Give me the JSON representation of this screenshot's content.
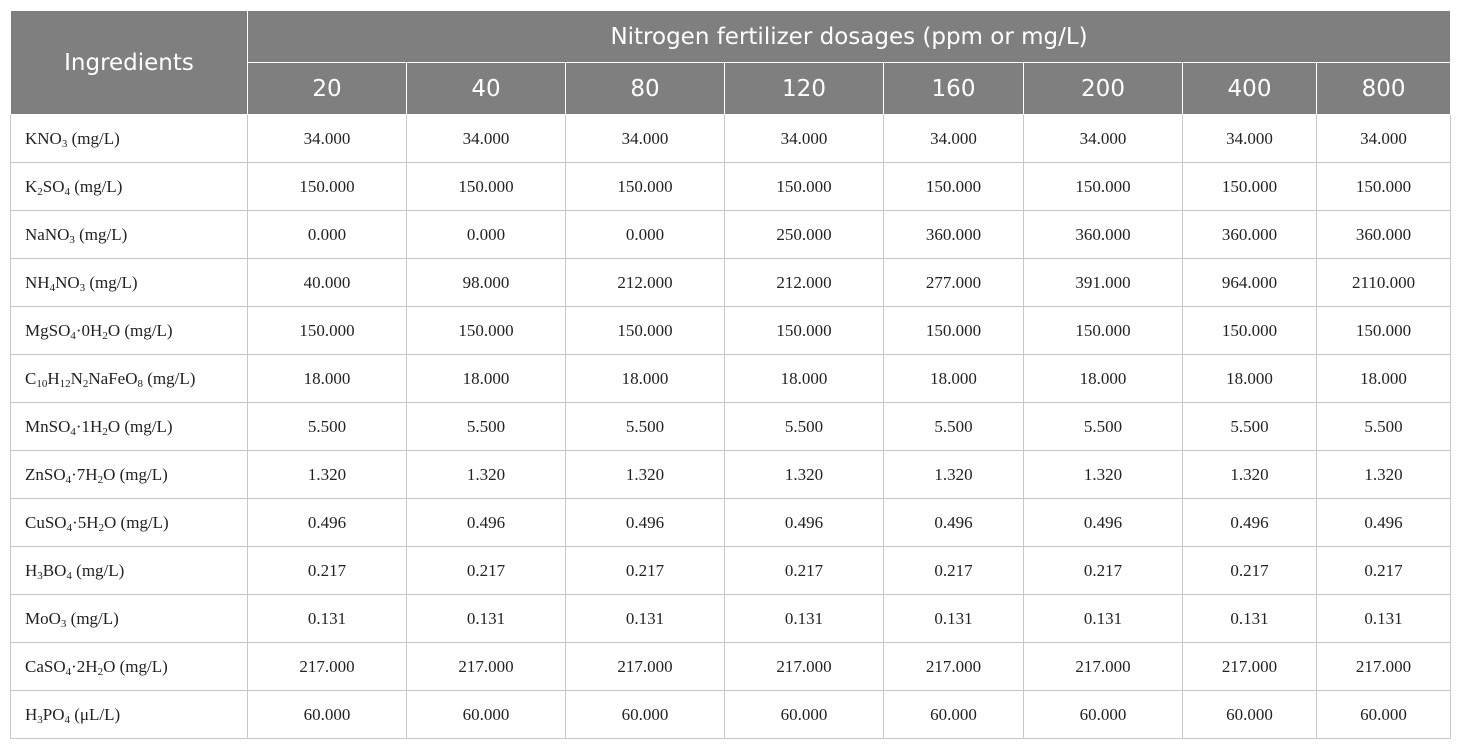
{
  "table": {
    "header_ingredients": "Ingredients",
    "header_group": "Nitrogen fertilizer dosages (ppm or mg/L)",
    "dosages": [
      "20",
      "40",
      "80",
      "120",
      "160",
      "200",
      "400",
      "800"
    ],
    "rows": [
      {
        "ingredient": [
          [
            "KNO"
          ],
          [
            "3",
            "sub"
          ],
          [
            " (mg/L)"
          ]
        ],
        "values": [
          "34.000",
          "34.000",
          "34.000",
          "34.000",
          "34.000",
          "34.000",
          "34.000",
          "34.000"
        ]
      },
      {
        "ingredient": [
          [
            "K"
          ],
          [
            "2",
            "sub"
          ],
          [
            "SO"
          ],
          [
            "4",
            "sub"
          ],
          [
            " (mg/L)"
          ]
        ],
        "values": [
          "150.000",
          "150.000",
          "150.000",
          "150.000",
          "150.000",
          "150.000",
          "150.000",
          "150.000"
        ]
      },
      {
        "ingredient": [
          [
            "NaNO"
          ],
          [
            "3",
            "sub"
          ],
          [
            " (mg/L)"
          ]
        ],
        "values": [
          "0.000",
          "0.000",
          "0.000",
          "250.000",
          "360.000",
          "360.000",
          "360.000",
          "360.000"
        ]
      },
      {
        "ingredient": [
          [
            "NH"
          ],
          [
            "4",
            "sub"
          ],
          [
            "NO"
          ],
          [
            "3",
            "sub"
          ],
          [
            " (mg/L)"
          ]
        ],
        "values": [
          "40.000",
          "98.000",
          "212.000",
          "212.000",
          "277.000",
          "391.000",
          "964.000",
          "2110.000"
        ]
      },
      {
        "ingredient": [
          [
            "MgSO"
          ],
          [
            "4",
            "sub"
          ],
          [
            "·0H"
          ],
          [
            "2",
            "sub"
          ],
          [
            "O (mg/L)"
          ]
        ],
        "values": [
          "150.000",
          "150.000",
          "150.000",
          "150.000",
          "150.000",
          "150.000",
          "150.000",
          "150.000"
        ]
      },
      {
        "ingredient": [
          [
            "C"
          ],
          [
            "10",
            "sub"
          ],
          [
            "H"
          ],
          [
            "12",
            "sub"
          ],
          [
            "N"
          ],
          [
            "2",
            "sub"
          ],
          [
            "NaFeO"
          ],
          [
            "8",
            "sub"
          ],
          [
            " (mg/L)"
          ]
        ],
        "values": [
          "18.000",
          "18.000",
          "18.000",
          "18.000",
          "18.000",
          "18.000",
          "18.000",
          "18.000"
        ]
      },
      {
        "ingredient": [
          [
            "MnSO"
          ],
          [
            "4",
            "sub"
          ],
          [
            "·1H"
          ],
          [
            "2",
            "sub"
          ],
          [
            "O (mg/L)"
          ]
        ],
        "values": [
          "5.500",
          "5.500",
          "5.500",
          "5.500",
          "5.500",
          "5.500",
          "5.500",
          "5.500"
        ]
      },
      {
        "ingredient": [
          [
            "ZnSO"
          ],
          [
            "4",
            "sub"
          ],
          [
            "·7H"
          ],
          [
            "2",
            "sub"
          ],
          [
            "O (mg/L)"
          ]
        ],
        "values": [
          "1.320",
          "1.320",
          "1.320",
          "1.320",
          "1.320",
          "1.320",
          "1.320",
          "1.320"
        ]
      },
      {
        "ingredient": [
          [
            "CuSO"
          ],
          [
            "4",
            "sub"
          ],
          [
            "·5H"
          ],
          [
            "2",
            "sub"
          ],
          [
            "O (mg/L)"
          ]
        ],
        "values": [
          "0.496",
          "0.496",
          "0.496",
          "0.496",
          "0.496",
          "0.496",
          "0.496",
          "0.496"
        ]
      },
      {
        "ingredient": [
          [
            "H"
          ],
          [
            "3",
            "sub"
          ],
          [
            "BO"
          ],
          [
            "4",
            "sub"
          ],
          [
            " (mg/L)"
          ]
        ],
        "values": [
          "0.217",
          "0.217",
          "0.217",
          "0.217",
          "0.217",
          "0.217",
          "0.217",
          "0.217"
        ]
      },
      {
        "ingredient": [
          [
            "MoO"
          ],
          [
            "3",
            "sub"
          ],
          [
            " (mg/L)"
          ]
        ],
        "values": [
          "0.131",
          "0.131",
          "0.131",
          "0.131",
          "0.131",
          "0.131",
          "0.131",
          "0.131"
        ]
      },
      {
        "ingredient": [
          [
            "CaSO"
          ],
          [
            "4",
            "sub"
          ],
          [
            "·2H"
          ],
          [
            "2",
            "sub"
          ],
          [
            "O (mg/L)"
          ]
        ],
        "values": [
          "217.000",
          "217.000",
          "217.000",
          "217.000",
          "217.000",
          "217.000",
          "217.000",
          "217.000"
        ]
      },
      {
        "ingredient": [
          [
            "H"
          ],
          [
            "3",
            "sub"
          ],
          [
            "PO"
          ],
          [
            "4",
            "sub"
          ],
          [
            " (μL/L)"
          ]
        ],
        "values": [
          "60.000",
          "60.000",
          "60.000",
          "60.000",
          "60.000",
          "60.000",
          "60.000",
          "60.000"
        ]
      }
    ],
    "colors": {
      "header_bg": "#7f7f7f",
      "header_text": "#ffffff",
      "grid": "#c8c8c8"
    }
  }
}
